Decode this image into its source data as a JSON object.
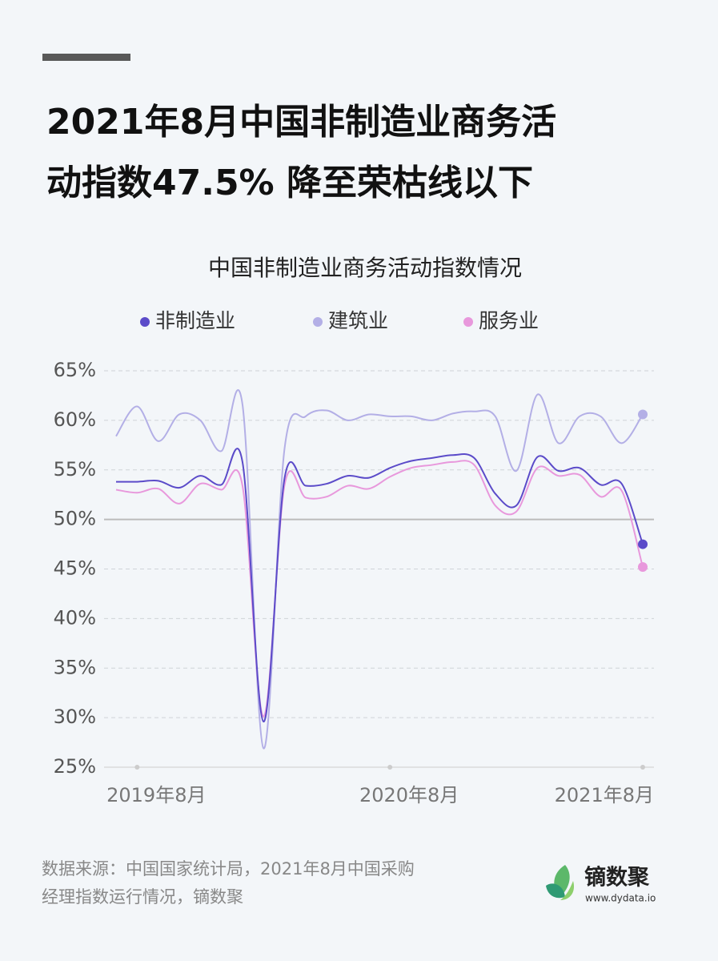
{
  "header": {
    "title_lines": [
      "2021年8月中国非制造业商务活",
      "动指数47.5% 降至荣枯线以下"
    ]
  },
  "chart_data": {
    "type": "line",
    "title": "中国非制造业商务活动指数情况",
    "categories": [
      null,
      "2019年8月",
      null,
      null,
      null,
      null,
      null,
      null,
      null,
      null,
      null,
      null,
      null,
      "2020年8月",
      null,
      null,
      null,
      null,
      null,
      null,
      null,
      null,
      null,
      null,
      null,
      "2021年8月"
    ],
    "series": [
      {
        "name": "非制造业",
        "color": "#5b4bc9",
        "values": [
          53.8,
          53.8,
          53.9,
          53.2,
          54.4,
          53.5,
          55.8,
          29.6,
          54.2,
          53.4,
          53.6,
          54.4,
          54.2,
          55.2,
          55.9,
          56.2,
          56.5,
          56.2,
          52.6,
          51.4,
          56.3,
          54.9,
          55.2,
          53.5,
          53.6,
          47.5
        ]
      },
      {
        "name": "建筑业",
        "color": "#b3afe6",
        "values": [
          58.4,
          61.4,
          57.9,
          60.6,
          60.0,
          56.9,
          61.6,
          26.9,
          57.2,
          60.4,
          61.0,
          60.0,
          60.6,
          60.4,
          60.4,
          60.0,
          60.7,
          60.9,
          60.4,
          54.9,
          62.6,
          57.7,
          60.4,
          60.4,
          57.7,
          60.6
        ]
      },
      {
        "name": "服务业",
        "color": "#e898dc",
        "values": [
          53.0,
          52.7,
          53.1,
          51.6,
          53.6,
          53.0,
          53.4,
          30.1,
          53.5,
          52.2,
          52.3,
          53.4,
          53.1,
          54.3,
          55.2,
          55.5,
          55.8,
          55.5,
          51.4,
          50.8,
          55.2,
          54.4,
          54.5,
          52.3,
          52.9,
          45.2
        ]
      }
    ],
    "ylim": [
      25,
      65
    ],
    "yticks": [
      {
        "value": 25,
        "label": "25%"
      },
      {
        "value": 30,
        "label": "30%"
      },
      {
        "value": 35,
        "label": "35%"
      },
      {
        "value": 40,
        "label": "40%"
      },
      {
        "value": 45,
        "label": "45%"
      },
      {
        "value": 50,
        "label": "50%"
      },
      {
        "value": 55,
        "label": "55%"
      },
      {
        "value": 60,
        "label": "60%"
      },
      {
        "value": 65,
        "label": "65%"
      }
    ],
    "baseline": 50,
    "grid": true
  },
  "footer": {
    "source_lines": [
      "数据来源：中国国家统计局，2021年8月中国采购",
      "经理指数运行情况，镝数聚"
    ],
    "brand": "镝数聚",
    "url": "www.dydata.io"
  }
}
